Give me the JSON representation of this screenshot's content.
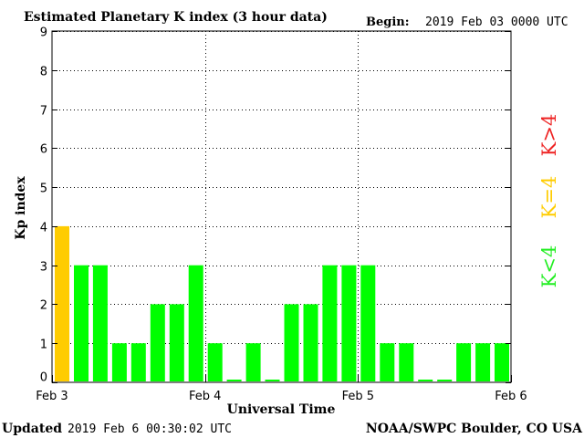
{
  "header": {
    "title": "Estimated Planetary K index (3 hour data)",
    "begin_label": "Begin:",
    "begin_value": "2019 Feb 03 0000 UTC"
  },
  "footer": {
    "updated_label": "Updated",
    "updated_value": "2019 Feb  6 00:30:02 UTC",
    "source": "NOAA/SWPC Boulder, CO USA"
  },
  "legend": {
    "items": [
      {
        "label": "K<4",
        "color": "#22ee22"
      },
      {
        "label": "K=4",
        "color": "#ffcc00"
      },
      {
        "label": "K>4",
        "color": "#ee2222"
      }
    ]
  },
  "colors": {
    "low": "#00ff00",
    "equal": "#ffcc00",
    "high": "#ff0000",
    "grid": "#000000"
  },
  "chart_data": {
    "type": "bar",
    "title": "Estimated Planetary K index (3 hour data)",
    "xlabel": "Universal Time",
    "ylabel": "Kp index",
    "ylim": [
      0,
      9
    ],
    "yticks": [
      "0",
      "1",
      "2",
      "3",
      "4",
      "5",
      "6",
      "7",
      "8",
      "9"
    ],
    "xticks": [
      "Feb 3",
      "Feb 4",
      "Feb 5",
      "Feb 6"
    ],
    "grid": true,
    "bins_per_day": 8,
    "values": [
      4,
      3,
      3,
      1,
      1,
      2,
      2,
      3,
      1,
      0,
      1,
      0,
      2,
      2,
      3,
      3,
      3,
      1,
      1,
      0,
      0,
      1,
      1,
      1
    ]
  }
}
